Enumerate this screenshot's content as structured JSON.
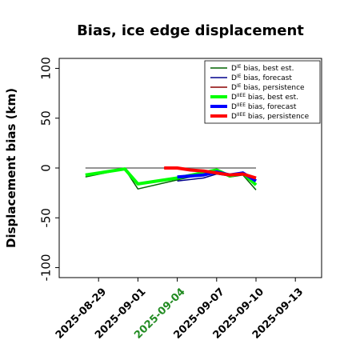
{
  "chart_data": {
    "type": "line",
    "title": "Bias, ice edge displacement",
    "xlabel": "",
    "ylabel": "Displacement bias (km)",
    "ylim": [
      -110,
      110
    ],
    "yticks": [
      -100,
      -50,
      0,
      50,
      100
    ],
    "xlim": [
      "2025-08-26",
      "2025-09-15"
    ],
    "xticks": [
      "2025-08-29",
      "2025-09-01",
      "2025-09-04",
      "2025-09-07",
      "2025-09-10",
      "2025-09-13"
    ],
    "highlighted_xtick": "2025-09-04",
    "highlight_color": "#228b22",
    "zero_line": true,
    "grid": false,
    "legend_position": "top-right",
    "series": [
      {
        "name": "bias, best est.",
        "sup": "IE",
        "color": "#006400",
        "width": 1.5,
        "x": [
          "2025-08-28",
          "2025-09-00_5",
          "2025-09-01",
          "2025-09-04",
          "2025-09-07",
          "2025-09-08",
          "2025-09-09",
          "2025-09-10"
        ],
        "points": [
          [
            "2025-08-28",
            -9
          ],
          [
            "2025-08-31",
            -1
          ],
          [
            "2025-09-01",
            -21
          ],
          [
            "2025-09-04",
            -12
          ],
          [
            "2025-09-07",
            -3
          ],
          [
            "2025-09-08",
            -9
          ],
          [
            "2025-09-09",
            -7
          ],
          [
            "2025-09-10",
            -22
          ]
        ]
      },
      {
        "name": "bias, forecast",
        "sup": "IE",
        "color": "#00008b",
        "width": 1.5,
        "points": [
          [
            "2025-09-04",
            -13
          ],
          [
            "2025-09-06",
            -10
          ],
          [
            "2025-09-07",
            -6
          ],
          [
            "2025-09-08",
            -8
          ],
          [
            "2025-09-09",
            -6
          ],
          [
            "2025-09-10",
            -12
          ]
        ]
      },
      {
        "name": "bias, persistence",
        "sup": "IE",
        "color": "#8b0000",
        "width": 1.5,
        "points": [
          [
            "2025-09-03",
            0
          ],
          [
            "2025-09-04",
            0
          ],
          [
            "2025-09-05",
            -2
          ],
          [
            "2025-09-06",
            -4
          ],
          [
            "2025-09-07",
            -6
          ],
          [
            "2025-09-08",
            -7
          ],
          [
            "2025-09-09",
            -6
          ],
          [
            "2025-09-10",
            -10
          ]
        ]
      },
      {
        "name": "bias, best est.",
        "sup": "IIEE",
        "color": "#00ff00",
        "width": 4,
        "points": [
          [
            "2025-08-28",
            -7
          ],
          [
            "2025-08-31",
            -1
          ],
          [
            "2025-09-01",
            -16
          ],
          [
            "2025-09-04",
            -10
          ],
          [
            "2025-09-07",
            -2
          ],
          [
            "2025-09-08",
            -8
          ],
          [
            "2025-09-09",
            -5
          ],
          [
            "2025-09-10",
            -17
          ]
        ]
      },
      {
        "name": "bias, forecast",
        "sup": "IIEE",
        "color": "#0000ff",
        "width": 4,
        "points": [
          [
            "2025-09-04",
            -9
          ],
          [
            "2025-09-05",
            -8
          ],
          [
            "2025-09-06",
            -7
          ],
          [
            "2025-09-07",
            -4
          ],
          [
            "2025-09-08",
            -7
          ],
          [
            "2025-09-09",
            -5
          ],
          [
            "2025-09-10",
            -13
          ]
        ]
      },
      {
        "name": "bias, persistence",
        "sup": "IIEE",
        "color": "#ff0000",
        "width": 4,
        "points": [
          [
            "2025-09-03",
            0
          ],
          [
            "2025-09-04",
            0
          ],
          [
            "2025-09-05",
            -2
          ],
          [
            "2025-09-06",
            -3
          ],
          [
            "2025-09-07",
            -5
          ],
          [
            "2025-09-08",
            -7
          ],
          [
            "2025-09-09",
            -6
          ],
          [
            "2025-09-10",
            -10
          ]
        ]
      }
    ],
    "legend_letter": "D"
  }
}
